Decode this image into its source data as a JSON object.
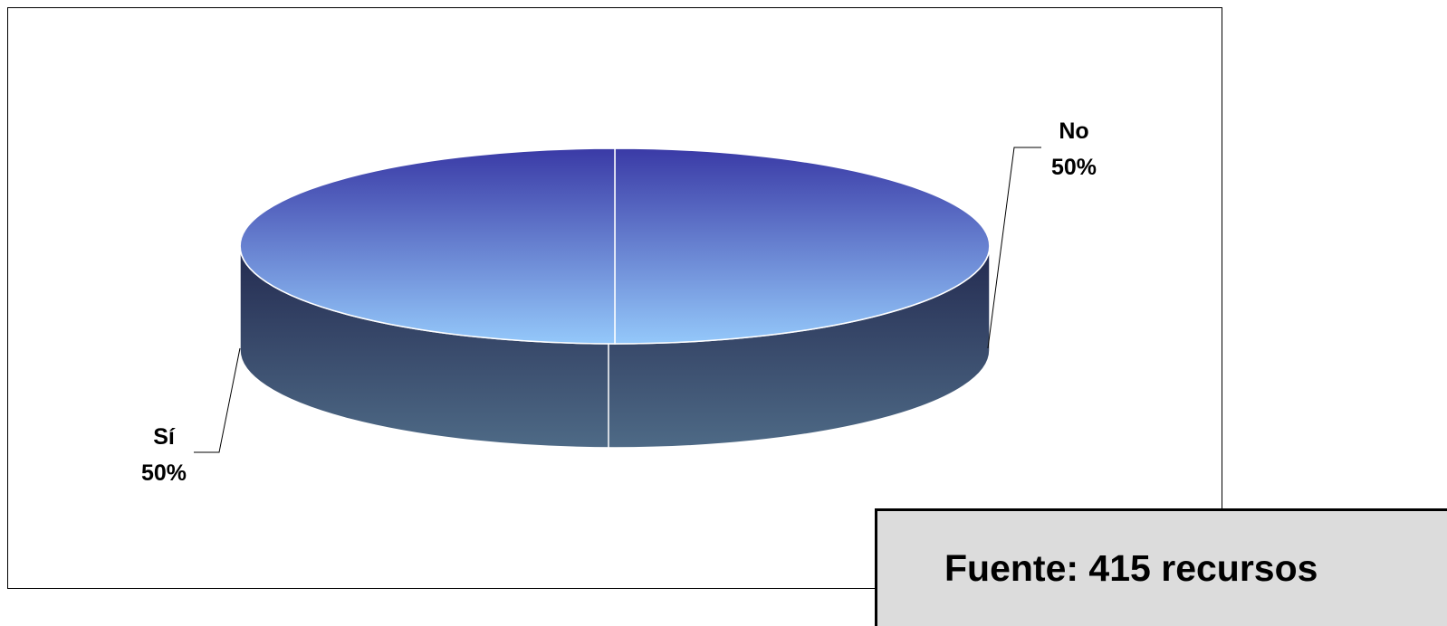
{
  "chart_data": {
    "type": "pie",
    "title": "",
    "style": "3d",
    "slices": [
      {
        "label": "No",
        "value": 50,
        "percent_label": "50%"
      },
      {
        "label": "Sí",
        "value": 50,
        "percent_label": "50%"
      }
    ],
    "colors": {
      "top_dark": "#3a3aa6",
      "top_light": "#94c8fa",
      "side_dark": "#232a50",
      "side_light": "#4e6a86",
      "outline": "#ffffff",
      "leader": "#000000"
    }
  },
  "source": {
    "text": "Fuente: 415 recursos"
  }
}
